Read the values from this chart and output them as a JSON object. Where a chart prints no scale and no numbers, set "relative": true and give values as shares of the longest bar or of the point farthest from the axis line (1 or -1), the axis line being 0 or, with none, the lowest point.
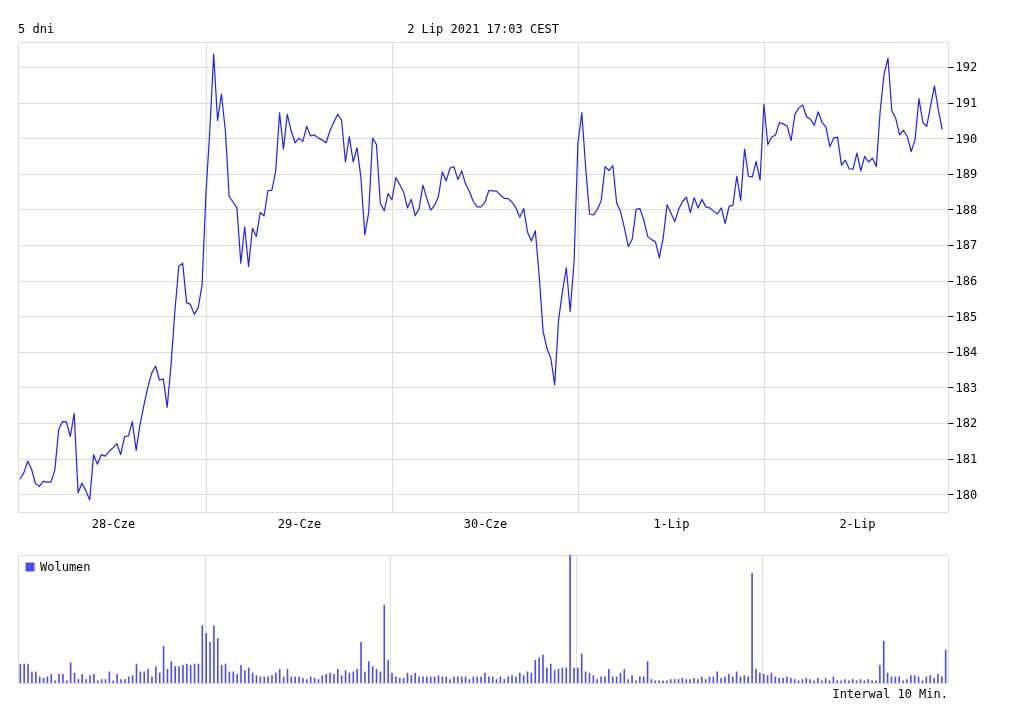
{
  "chart_data": [
    {
      "type": "line",
      "title": "5 dni",
      "subtitle": "2 Lip 2021 17:03 CEST",
      "color": "#2020ff",
      "grid": true,
      "categories": [
        null,
        null,
        null,
        null,
        null,
        null,
        null,
        null,
        null,
        null,
        null,
        null,
        null,
        null,
        null,
        null,
        null,
        null,
        null,
        null,
        null,
        null,
        null,
        null,
        "28-Cze",
        null,
        null,
        null,
        null,
        null,
        null,
        null,
        null,
        null,
        null,
        null,
        null,
        null,
        null,
        null,
        null,
        null,
        null,
        null,
        null,
        null,
        null,
        null,
        null,
        null,
        null,
        null,
        null,
        null,
        null,
        null,
        null,
        null,
        null,
        null,
        null,
        null,
        null,
        null,
        null,
        null,
        null,
        null,
        null,
        null,
        null,
        null,
        "29-Cze",
        null,
        null,
        null,
        null,
        null,
        null,
        null,
        null,
        null,
        null,
        null,
        null,
        null,
        null,
        null,
        null,
        null,
        null,
        null,
        null,
        null,
        null,
        null,
        null,
        null,
        null,
        null,
        null,
        null,
        null,
        null,
        null,
        null,
        null,
        null,
        null,
        null,
        null,
        null,
        null,
        null,
        null,
        null,
        null,
        null,
        null,
        null,
        "30-Cze",
        null,
        null,
        null,
        null,
        null,
        null,
        null,
        null,
        null,
        null,
        null,
        null,
        null,
        null,
        null,
        null,
        null,
        null,
        null,
        null,
        null,
        null,
        null,
        null,
        null,
        null,
        null,
        null,
        null,
        null,
        null,
        null,
        null,
        null,
        null,
        null,
        null,
        null,
        null,
        null,
        null,
        null,
        null,
        null,
        null,
        null,
        null,
        "1-Lip",
        null,
        null,
        null,
        null,
        null,
        null,
        null,
        null,
        null,
        null,
        null,
        null,
        null,
        null,
        null,
        null,
        null,
        null,
        null,
        null,
        null,
        null,
        null,
        null,
        null,
        null,
        null,
        null,
        null,
        null,
        null,
        null,
        null,
        null,
        null,
        null,
        null,
        null,
        null,
        null,
        null,
        null,
        null,
        null,
        null,
        null,
        null,
        "2-Lip",
        null,
        null,
        null,
        null,
        null,
        null,
        null,
        null,
        null,
        null,
        null,
        null,
        null,
        null,
        null,
        null,
        null,
        null,
        null,
        null,
        null,
        null,
        null
      ],
      "values": [
        180.42,
        180.6,
        180.93,
        180.7,
        180.3,
        180.22,
        180.36,
        180.34,
        180.34,
        180.67,
        181.82,
        182.04,
        182.03,
        181.62,
        182.27,
        180.04,
        180.31,
        180.1,
        179.84,
        181.11,
        180.84,
        181.11,
        181.07,
        181.2,
        181.3,
        181.42,
        181.11,
        181.62,
        181.64,
        182.04,
        181.23,
        181.96,
        182.5,
        183.0,
        183.4,
        183.6,
        183.2,
        183.24,
        182.44,
        183.64,
        185.16,
        186.4,
        186.49,
        185.38,
        185.33,
        185.05,
        185.24,
        185.87,
        188.44,
        190.22,
        192.36,
        190.49,
        191.24,
        190.22,
        188.36,
        188.2,
        188.04,
        186.49,
        187.51,
        186.4,
        187.47,
        187.24,
        187.91,
        187.82,
        188.53,
        188.53,
        189.07,
        190.71,
        189.69,
        190.67,
        190.2,
        189.87,
        190.0,
        189.91,
        190.33,
        190.06,
        190.09,
        190.0,
        189.95,
        189.87,
        190.2,
        190.45,
        190.67,
        190.51,
        189.33,
        190.04,
        189.33,
        189.73,
        188.89,
        187.29,
        187.91,
        190.0,
        189.82,
        188.18,
        187.96,
        188.44,
        188.27,
        188.89,
        188.7,
        188.49,
        188.04,
        188.28,
        187.82,
        188.02,
        188.68,
        188.3,
        187.98,
        188.11,
        188.36,
        189.05,
        188.8,
        189.16,
        189.2,
        188.84,
        189.08,
        188.71,
        188.5,
        188.22,
        188.07,
        188.07,
        188.2,
        188.53,
        188.52,
        188.51,
        188.4,
        188.31,
        188.3,
        188.2,
        188.04,
        187.78,
        188.02,
        187.36,
        187.11,
        187.4,
        186.13,
        184.58,
        184.09,
        183.82,
        183.07,
        184.89,
        185.69,
        186.36,
        185.13,
        186.53,
        189.87,
        190.71,
        189.16,
        187.87,
        187.84,
        188.0,
        188.24,
        189.2,
        189.09,
        189.23,
        188.18,
        187.93,
        187.47,
        186.95,
        187.16,
        188.0,
        188.02,
        187.7,
        187.24,
        187.15,
        187.09,
        186.64,
        187.2,
        188.13,
        187.9,
        187.66,
        188.0,
        188.22,
        188.34,
        187.91,
        188.33,
        188.04,
        188.28,
        188.07,
        188.04,
        187.95,
        187.87,
        188.04,
        187.6,
        188.09,
        188.11,
        188.93,
        188.25,
        189.69,
        188.93,
        188.91,
        189.35,
        188.82,
        190.95,
        189.82,
        190.03,
        190.09,
        190.44,
        190.4,
        190.34,
        189.93,
        190.67,
        190.85,
        190.93,
        190.6,
        190.53,
        190.36,
        190.74,
        190.44,
        190.31,
        189.76,
        190.0,
        190.03,
        189.24,
        189.38,
        189.14,
        189.13,
        189.58,
        189.08,
        189.49,
        189.33,
        189.44,
        189.2,
        190.76,
        191.8,
        192.25,
        190.77,
        190.56,
        190.09,
        190.22,
        190.04,
        189.62,
        189.96,
        191.11,
        190.44,
        190.33,
        190.9,
        191.47,
        190.8,
        190.24,
        null
      ],
      "ylim": [
        179.5,
        192.7
      ],
      "yticks": [
        180,
        181,
        182,
        183,
        184,
        185,
        186,
        187,
        188,
        189,
        190,
        191,
        192
      ]
    },
    {
      "type": "bar",
      "relative": true,
      "legend": "top left",
      "grid": true,
      "annotations": [
        "Interwal 10 Min."
      ],
      "categories": [
        null,
        null,
        null,
        null,
        null,
        null,
        null,
        null,
        null,
        null,
        null,
        null,
        null,
        null,
        null,
        null,
        null,
        null,
        null,
        null,
        null,
        null,
        null,
        null,
        null,
        null,
        null,
        null,
        null,
        null,
        null,
        null,
        null,
        null,
        null,
        null,
        null,
        null,
        null,
        null,
        null,
        null,
        null,
        null,
        null,
        null,
        null,
        null,
        null,
        null,
        null,
        null,
        null,
        null,
        null,
        null,
        null,
        null,
        null,
        null,
        null,
        null,
        null,
        null,
        null,
        null,
        null,
        null,
        null,
        null,
        null,
        null,
        null,
        null,
        null,
        null,
        null,
        null,
        null,
        null,
        null,
        null,
        null,
        null,
        null,
        null,
        null,
        null,
        null,
        null,
        null,
        null,
        null,
        null,
        null,
        null,
        null,
        null,
        null,
        null,
        null,
        null,
        null,
        null,
        null,
        null,
        null,
        null,
        null,
        null,
        null,
        null,
        null,
        null,
        null,
        null,
        null,
        null,
        null,
        null,
        null,
        null,
        null,
        null,
        null,
        null,
        null,
        null,
        null,
        null,
        null,
        null,
        null,
        null,
        null,
        null,
        null,
        null,
        null,
        null,
        null,
        null,
        null,
        null,
        null,
        null,
        null,
        null,
        null,
        null,
        null,
        null,
        null,
        null,
        null,
        null,
        null,
        null,
        null,
        null,
        null,
        null,
        null,
        null,
        null,
        null,
        null,
        null,
        null,
        null,
        null,
        null,
        null,
        null,
        null,
        null,
        null,
        null,
        null,
        null,
        null,
        null,
        null,
        null,
        null,
        null,
        null,
        null,
        null,
        null,
        null,
        null,
        null,
        null,
        null,
        null,
        null,
        null,
        null,
        null,
        null,
        null,
        null,
        null,
        null,
        null,
        null,
        null,
        null,
        null,
        null,
        null,
        null,
        null,
        null,
        null,
        null,
        null,
        null,
        null,
        null,
        null,
        null,
        null,
        null,
        null,
        null,
        null,
        null,
        null,
        null,
        null,
        null,
        null,
        null,
        null,
        null,
        null,
        null,
        null
      ],
      "series": [
        {
          "name": "Wolumen",
          "color": "#4a4aff",
          "values": [
            0.15,
            0.15,
            0.15,
            0.09,
            0.09,
            0.05,
            0.04,
            0.05,
            0.07,
            0.02,
            0.07,
            0.07,
            0.02,
            0.16,
            0.08,
            0.03,
            0.07,
            0.03,
            0.06,
            0.07,
            0.02,
            0.03,
            0.03,
            0.09,
            0.02,
            0.07,
            0.03,
            0.03,
            0.05,
            0.06,
            0.15,
            0.09,
            0.09,
            0.11,
            0.05,
            0.13,
            0.08,
            0.29,
            0.11,
            0.17,
            0.13,
            0.13,
            0.14,
            0.15,
            0.14,
            0.15,
            0.15,
            0.45,
            0.39,
            0.32,
            0.45,
            0.35,
            0.14,
            0.15,
            0.09,
            0.09,
            0.07,
            0.14,
            0.1,
            0.12,
            0.08,
            0.06,
            0.05,
            0.05,
            0.05,
            0.06,
            0.08,
            0.11,
            0.05,
            0.11,
            0.05,
            0.05,
            0.05,
            0.04,
            0.03,
            0.05,
            0.04,
            0.03,
            0.06,
            0.07,
            0.08,
            0.07,
            0.11,
            0.06,
            0.1,
            0.08,
            0.09,
            0.11,
            0.32,
            0.09,
            0.17,
            0.13,
            0.11,
            0.09,
            0.61,
            0.18,
            0.08,
            0.05,
            0.04,
            0.04,
            0.08,
            0.06,
            0.08,
            0.05,
            0.05,
            0.05,
            0.05,
            0.05,
            0.06,
            0.05,
            0.05,
            0.03,
            0.05,
            0.05,
            0.05,
            0.05,
            0.03,
            0.05,
            0.05,
            0.05,
            0.08,
            0.05,
            0.05,
            0.03,
            0.05,
            0.03,
            0.05,
            0.06,
            0.05,
            0.08,
            0.06,
            0.09,
            0.08,
            0.18,
            0.2,
            0.22,
            0.12,
            0.15,
            0.1,
            0.11,
            0.12,
            0.12,
            1.0,
            0.12,
            0.12,
            0.23,
            0.09,
            0.08,
            0.06,
            0.03,
            0.05,
            0.05,
            0.11,
            0.05,
            0.05,
            0.08,
            0.11,
            0.03,
            0.06,
            0.02,
            0.05,
            0.05,
            0.17,
            0.03,
            0.02,
            0.02,
            0.02,
            0.02,
            0.03,
            0.03,
            0.03,
            0.04,
            0.03,
            0.03,
            0.04,
            0.03,
            0.05,
            0.03,
            0.05,
            0.05,
            0.09,
            0.04,
            0.05,
            0.07,
            0.05,
            0.09,
            0.05,
            0.06,
            0.05,
            0.86,
            0.11,
            0.08,
            0.07,
            0.06,
            0.08,
            0.05,
            0.04,
            0.04,
            0.05,
            0.04,
            0.03,
            0.02,
            0.03,
            0.04,
            0.03,
            0.02,
            0.04,
            0.02,
            0.04,
            0.02,
            0.05,
            0.02,
            0.02,
            0.03,
            0.02,
            0.03,
            0.02,
            0.03,
            0.02,
            0.03,
            0.02,
            0.02,
            0.14,
            0.33,
            0.08,
            0.05,
            0.05,
            0.05,
            0.02,
            0.03,
            0.06,
            0.06,
            0.05,
            0.02,
            0.05,
            0.06,
            0.04,
            0.07,
            0.05,
            0.26
          ]
        }
      ]
    }
  ]
}
